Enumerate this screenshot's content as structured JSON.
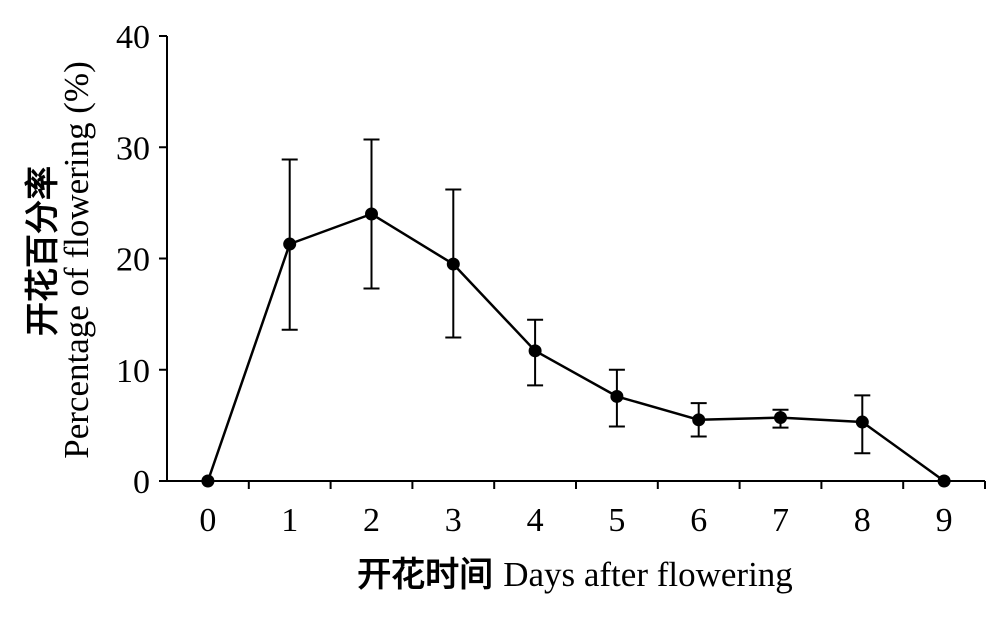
{
  "chart_data": {
    "type": "line",
    "x": [
      0,
      1,
      2,
      3,
      4,
      5,
      6,
      7,
      8,
      9
    ],
    "y": [
      0,
      21.3,
      24.0,
      19.5,
      11.7,
      7.6,
      5.5,
      5.7,
      5.3,
      0
    ],
    "error_high": [
      null,
      28.9,
      30.7,
      26.2,
      14.5,
      10.0,
      7.0,
      6.4,
      7.7,
      null
    ],
    "error_low": [
      null,
      13.6,
      17.3,
      12.9,
      8.6,
      4.9,
      4.0,
      4.8,
      2.5,
      null
    ],
    "xlabel": {
      "zh": "开花时间",
      "en": "Days after flowering"
    },
    "ylabel": {
      "zh": "开花百分率",
      "en": "Percentage of flowering (%)"
    },
    "xlim": [
      -0.5,
      9.5
    ],
    "ylim": [
      0,
      40
    ],
    "yticks": [
      0,
      10,
      20,
      30,
      40
    ],
    "grid": false,
    "colors": {
      "series": "#000000",
      "axis": "#000000"
    }
  }
}
